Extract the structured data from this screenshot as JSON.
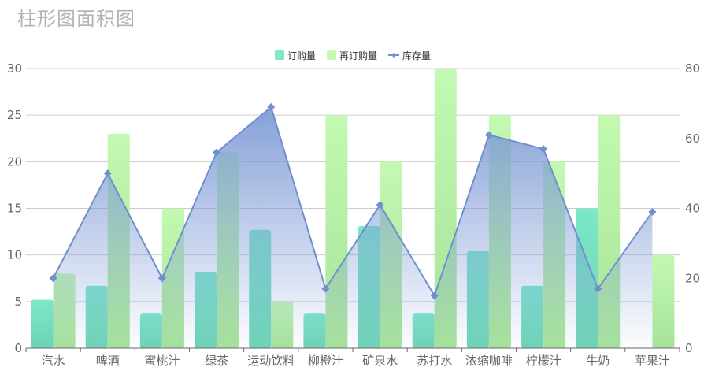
{
  "title": "柱形图面积图",
  "colors": {
    "bar1_top": "#7be8c8",
    "bar1_bottom": "#6fd3b6",
    "bar2_top": "#c3f9b1",
    "bar2_bottom": "#a6e39a",
    "line": "#6f8fcf",
    "area_top": "#7f9bd6",
    "grid": "#cccccc",
    "axis": "#666666"
  },
  "legend": {
    "items": [
      {
        "label": "订购量",
        "icon": "square-swatch-icon"
      },
      {
        "label": "再订购量",
        "icon": "square-swatch-icon"
      },
      {
        "label": "库存量",
        "icon": "line-diamond-icon"
      }
    ]
  },
  "chart_data": {
    "type": "bar",
    "categories": [
      "汽水",
      "啤酒",
      "蜜桃汁",
      "绿茶",
      "运动饮料",
      "柳橙汁",
      "矿泉水",
      "苏打水",
      "浓缩咖啡",
      "柠檬汁",
      "牛奶",
      "苹果汁"
    ],
    "series": [
      {
        "name": "订购量",
        "type": "bar",
        "axis": "left",
        "values": [
          5.2,
          6.7,
          3.7,
          8.2,
          12.7,
          3.7,
          13.1,
          3.7,
          10.4,
          6.7,
          15,
          0
        ]
      },
      {
        "name": "再订购量",
        "type": "bar",
        "axis": "left",
        "values": [
          8,
          23,
          15,
          21,
          5,
          25,
          20,
          30,
          25,
          20,
          25,
          10
        ]
      },
      {
        "name": "库存量",
        "type": "area-line",
        "axis": "right",
        "values": [
          20,
          50,
          20,
          56,
          69,
          17,
          41,
          15,
          61,
          57,
          17,
          39
        ]
      }
    ],
    "yleft": {
      "min": 0,
      "max": 30,
      "ticks": [
        0,
        5,
        10,
        15,
        20,
        25,
        30
      ]
    },
    "yright": {
      "min": 0,
      "max": 80,
      "ticks": [
        0,
        20,
        40,
        60,
        80
      ]
    },
    "legend_position": "top-center",
    "grid": true
  }
}
